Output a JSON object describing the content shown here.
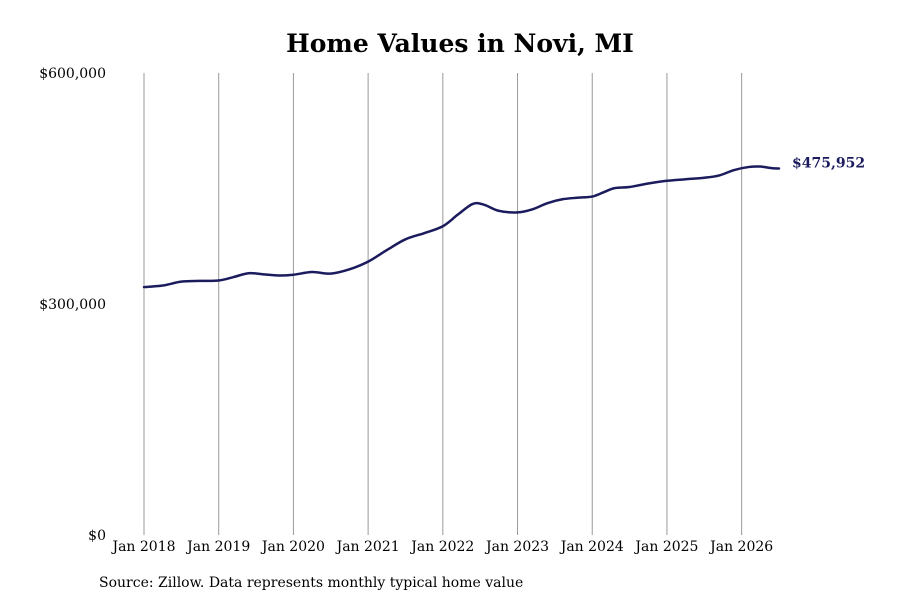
{
  "chart_data": {
    "type": "line",
    "title": "Home Values in Novi, MI",
    "source_note": "Source: Zillow. Data represents monthly typical home value",
    "end_label": "$475,952",
    "line_color": "#1b1b5e",
    "grid_color": "#999999",
    "y_ticks": [
      {
        "value": 0,
        "label": "$0"
      },
      {
        "value": 300000,
        "label": "$300,000"
      },
      {
        "value": 600000,
        "label": "$600,000"
      }
    ],
    "ylim": [
      0,
      600000
    ],
    "x_ticks": [
      {
        "value": 2018.0,
        "label": "Jan 2018"
      },
      {
        "value": 2019.0,
        "label": "Jan 2019"
      },
      {
        "value": 2020.0,
        "label": "Jan 2020"
      },
      {
        "value": 2021.0,
        "label": "Jan 2021"
      },
      {
        "value": 2022.0,
        "label": "Jan 2022"
      },
      {
        "value": 2023.0,
        "label": "Jan 2023"
      },
      {
        "value": 2024.0,
        "label": "Jan 2024"
      },
      {
        "value": 2025.0,
        "label": "Jan 2025"
      },
      {
        "value": 2026.0,
        "label": "Jan 2026"
      }
    ],
    "xlim": [
      2018.0,
      2026.5
    ],
    "vertical_grid": true,
    "series": [
      {
        "x": [
          2018.0,
          2018.25,
          2018.5,
          2018.75,
          2019.0,
          2019.2,
          2019.4,
          2019.6,
          2019.8,
          2020.0,
          2020.25,
          2020.5,
          2020.75,
          2021.0,
          2021.25,
          2021.5,
          2021.75,
          2022.0,
          2022.2,
          2022.4,
          2022.55,
          2022.75,
          2023.0,
          2023.2,
          2023.4,
          2023.6,
          2023.8,
          2024.0,
          2024.15,
          2024.3,
          2024.5,
          2024.75,
          2025.0,
          2025.25,
          2025.5,
          2025.7,
          2025.9,
          2026.1,
          2026.25,
          2026.4,
          2026.5
        ],
        "y": [
          322000,
          324000,
          329000,
          330000,
          330500,
          335000,
          340000,
          338500,
          337000,
          338000,
          341500,
          339500,
          345000,
          355000,
          370000,
          384000,
          392000,
          401000,
          416000,
          430000,
          429000,
          421000,
          419000,
          423000,
          431000,
          436000,
          438000,
          439500,
          445000,
          450500,
          452000,
          456500,
          460000,
          462000,
          464000,
          467000,
          474000,
          478000,
          478500,
          476500,
          476000
        ]
      }
    ]
  }
}
